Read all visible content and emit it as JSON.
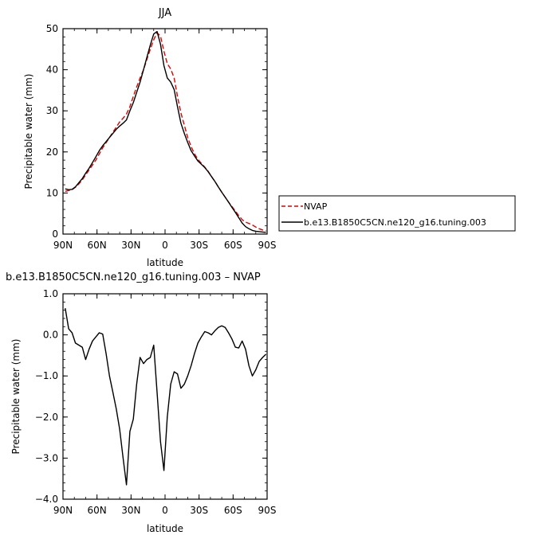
{
  "chart_data": [
    {
      "type": "line",
      "title": "JJA",
      "xlabel": "latitude",
      "ylabel": "Precipitable water  (mm)",
      "xlim": [
        90,
        -90
      ],
      "ylim": [
        0,
        50
      ],
      "xticks": [
        90,
        60,
        30,
        0,
        -30,
        -60,
        -90
      ],
      "xtick_labels": [
        "90N",
        "60N",
        "30N",
        "0",
        "30S",
        "60S",
        "90S"
      ],
      "yticks": [
        0,
        10,
        20,
        30,
        40,
        50
      ],
      "ytick_labels": [
        "0",
        "10",
        "20",
        "30",
        "40",
        "50"
      ],
      "grid": false,
      "legend": "right",
      "series": [
        {
          "name": "NVAP",
          "color": "#e00000",
          "dash": "dashed",
          "x": [
            88,
            85,
            82,
            79,
            76,
            73,
            70,
            67,
            64,
            61,
            58,
            55,
            52,
            49,
            46,
            43,
            40,
            37,
            34,
            31,
            28,
            25,
            22,
            19,
            16,
            13,
            10,
            7,
            4,
            1,
            -2,
            -5,
            -8,
            -11,
            -14,
            -17,
            -20,
            -23,
            -26,
            -29,
            -32,
            -35,
            -38,
            -41,
            -44,
            -47,
            -50,
            -53,
            -56,
            -59,
            -62,
            -65,
            -68,
            -71,
            -74,
            -77,
            -80,
            -83,
            -86,
            -89
          ],
          "values": [
            10.4,
            10.6,
            10.8,
            11.4,
            12.2,
            13.2,
            14.4,
            15.6,
            16.8,
            18.0,
            19.5,
            21.0,
            22.2,
            23.5,
            24.8,
            26.0,
            27.3,
            28.2,
            29.2,
            31.0,
            33.5,
            35.8,
            38.0,
            40.0,
            42.5,
            45.0,
            47.3,
            49.0,
            48.2,
            44.5,
            41.5,
            40.2,
            38.0,
            33.5,
            29.5,
            26.5,
            23.5,
            21.3,
            19.5,
            18.2,
            17.2,
            16.3,
            15.3,
            14.0,
            12.8,
            11.5,
            10.2,
            9.0,
            7.8,
            6.7,
            5.6,
            4.5,
            3.5,
            2.9,
            2.6,
            2.2,
            1.7,
            1.3,
            1.0,
            0.8
          ]
        },
        {
          "name": "b.e13.B1850C5CN.ne120_g16.tuning.003",
          "color": "#000000",
          "dash": "solid",
          "x": [
            88,
            85,
            82,
            79,
            76,
            73,
            70,
            67,
            64,
            61,
            58,
            55,
            52,
            49,
            46,
            43,
            40,
            37,
            34,
            31,
            28,
            25,
            22,
            19,
            16,
            13,
            10,
            7,
            4,
            1,
            -2,
            -5,
            -8,
            -11,
            -14,
            -17,
            -20,
            -23,
            -26,
            -29,
            -32,
            -35,
            -38,
            -41,
            -44,
            -47,
            -50,
            -53,
            -56,
            -59,
            -62,
            -65,
            -68,
            -71,
            -74,
            -77,
            -80,
            -83,
            -86,
            -89
          ],
          "values": [
            11.0,
            10.8,
            10.9,
            11.5,
            12.5,
            13.5,
            14.8,
            16.0,
            17.4,
            18.8,
            20.3,
            21.5,
            22.5,
            23.5,
            24.5,
            25.5,
            26.3,
            27.0,
            27.8,
            30.0,
            32.0,
            34.5,
            37.0,
            40.0,
            43.0,
            46.0,
            48.7,
            49.3,
            46.2,
            41.0,
            38.0,
            37.0,
            35.2,
            31.0,
            27.0,
            24.5,
            22.3,
            20.3,
            19.0,
            17.8,
            17.0,
            16.2,
            15.2,
            14.0,
            12.8,
            11.5,
            10.2,
            9.0,
            7.8,
            6.5,
            5.3,
            4.0,
            2.7,
            1.8,
            1.3,
            0.9,
            0.7,
            0.6,
            0.5,
            0.4
          ]
        }
      ]
    },
    {
      "type": "line",
      "title": "b.e13.B1850C5CN.ne120_g16.tuning.003 – NVAP",
      "xlabel": "latitude",
      "ylabel": "Precipitable water  (mm)",
      "xlim": [
        90,
        -90
      ],
      "ylim": [
        -4.0,
        1.0
      ],
      "xticks": [
        90,
        60,
        30,
        0,
        -30,
        -60,
        -90
      ],
      "xtick_labels": [
        "90N",
        "60N",
        "30N",
        "0",
        "30S",
        "60S",
        "90S"
      ],
      "yticks": [
        1.0,
        0.0,
        -1.0,
        -2.0,
        -3.0,
        -4.0
      ],
      "ytick_labels": [
        "1.0",
        "0.0",
        "−1.0",
        "−2.0",
        "−3.0",
        "−4.0"
      ],
      "grid": false,
      "series": [
        {
          "color": "#000000",
          "dash": "solid",
          "x": [
            88,
            85,
            82,
            79,
            76,
            73,
            70,
            67,
            64,
            61,
            58,
            55,
            52,
            49,
            46,
            43,
            40,
            37,
            34,
            31,
            28,
            25,
            22,
            19,
            16,
            13,
            10,
            7,
            4,
            1,
            -2,
            -5,
            -8,
            -11,
            -14,
            -17,
            -20,
            -23,
            -26,
            -29,
            -32,
            -35,
            -38,
            -41,
            -44,
            -47,
            -50,
            -53,
            -56,
            -59,
            -62,
            -65,
            -68,
            -71,
            -74,
            -77,
            -80,
            -83,
            -86,
            -89
          ],
          "values": [
            0.65,
            0.15,
            0.05,
            -0.2,
            -0.25,
            -0.3,
            -0.6,
            -0.35,
            -0.15,
            -0.05,
            0.05,
            0.02,
            -0.45,
            -1.0,
            -1.4,
            -1.8,
            -2.3,
            -3.0,
            -3.65,
            -2.35,
            -2.05,
            -1.2,
            -0.55,
            -0.7,
            -0.6,
            -0.55,
            -0.25,
            -1.4,
            -2.6,
            -3.3,
            -2.0,
            -1.2,
            -0.9,
            -0.95,
            -1.3,
            -1.2,
            -1.0,
            -0.75,
            -0.45,
            -0.2,
            -0.05,
            0.08,
            0.05,
            0.0,
            0.1,
            0.18,
            0.22,
            0.18,
            0.05,
            -0.1,
            -0.3,
            -0.32,
            -0.15,
            -0.35,
            -0.75,
            -1.0,
            -0.85,
            -0.65,
            -0.55,
            -0.47
          ]
        }
      ]
    }
  ]
}
